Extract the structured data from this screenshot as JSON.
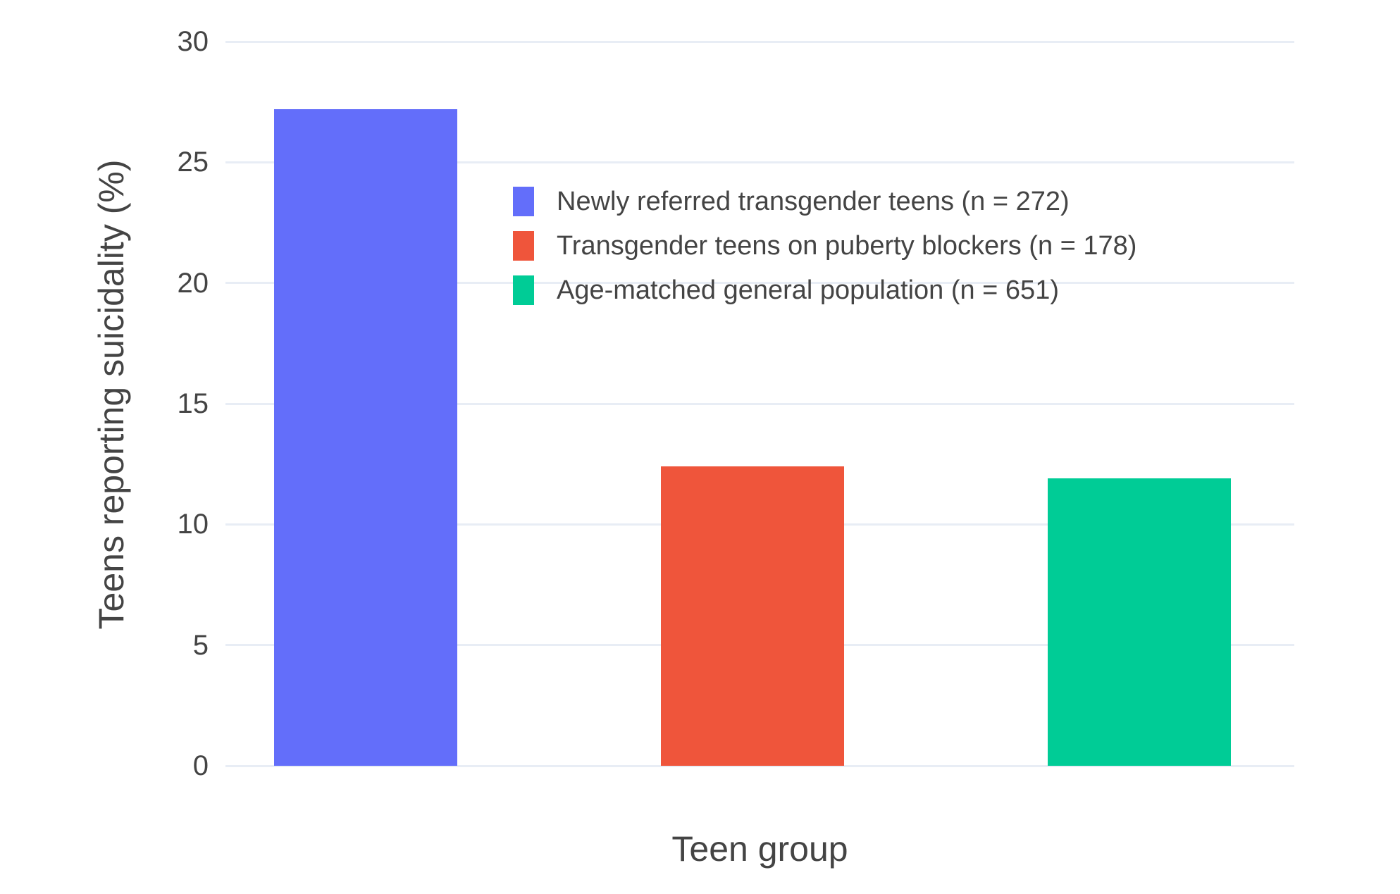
{
  "chart_data": {
    "type": "bar",
    "title": "",
    "xlabel": "Teen group",
    "ylabel": "Teens reporting suicidality (%)",
    "categories": [
      "Newly referred transgender teens (n = 272)",
      "Transgender teens on puberty blockers (n = 178)",
      "Age-matched general population (n = 651)"
    ],
    "values": [
      27.2,
      12.4,
      11.9
    ],
    "bar_colors": [
      "#636EFA",
      "#EF553B",
      "#00CC96"
    ],
    "ylim": [
      0,
      30
    ],
    "yticks": [
      0,
      5,
      10,
      15,
      20,
      25,
      30
    ],
    "grid": true,
    "legend": {
      "position": "inside upper-center",
      "entries": [
        "Newly referred transgender teens (n = 272)",
        "Transgender teens on puberty blockers (n = 178)",
        "Age-matched general population (n = 651)"
      ]
    }
  },
  "colors": {
    "background": "#FFFFFF",
    "gridline": "#E8EDF5",
    "text": "#444444"
  }
}
